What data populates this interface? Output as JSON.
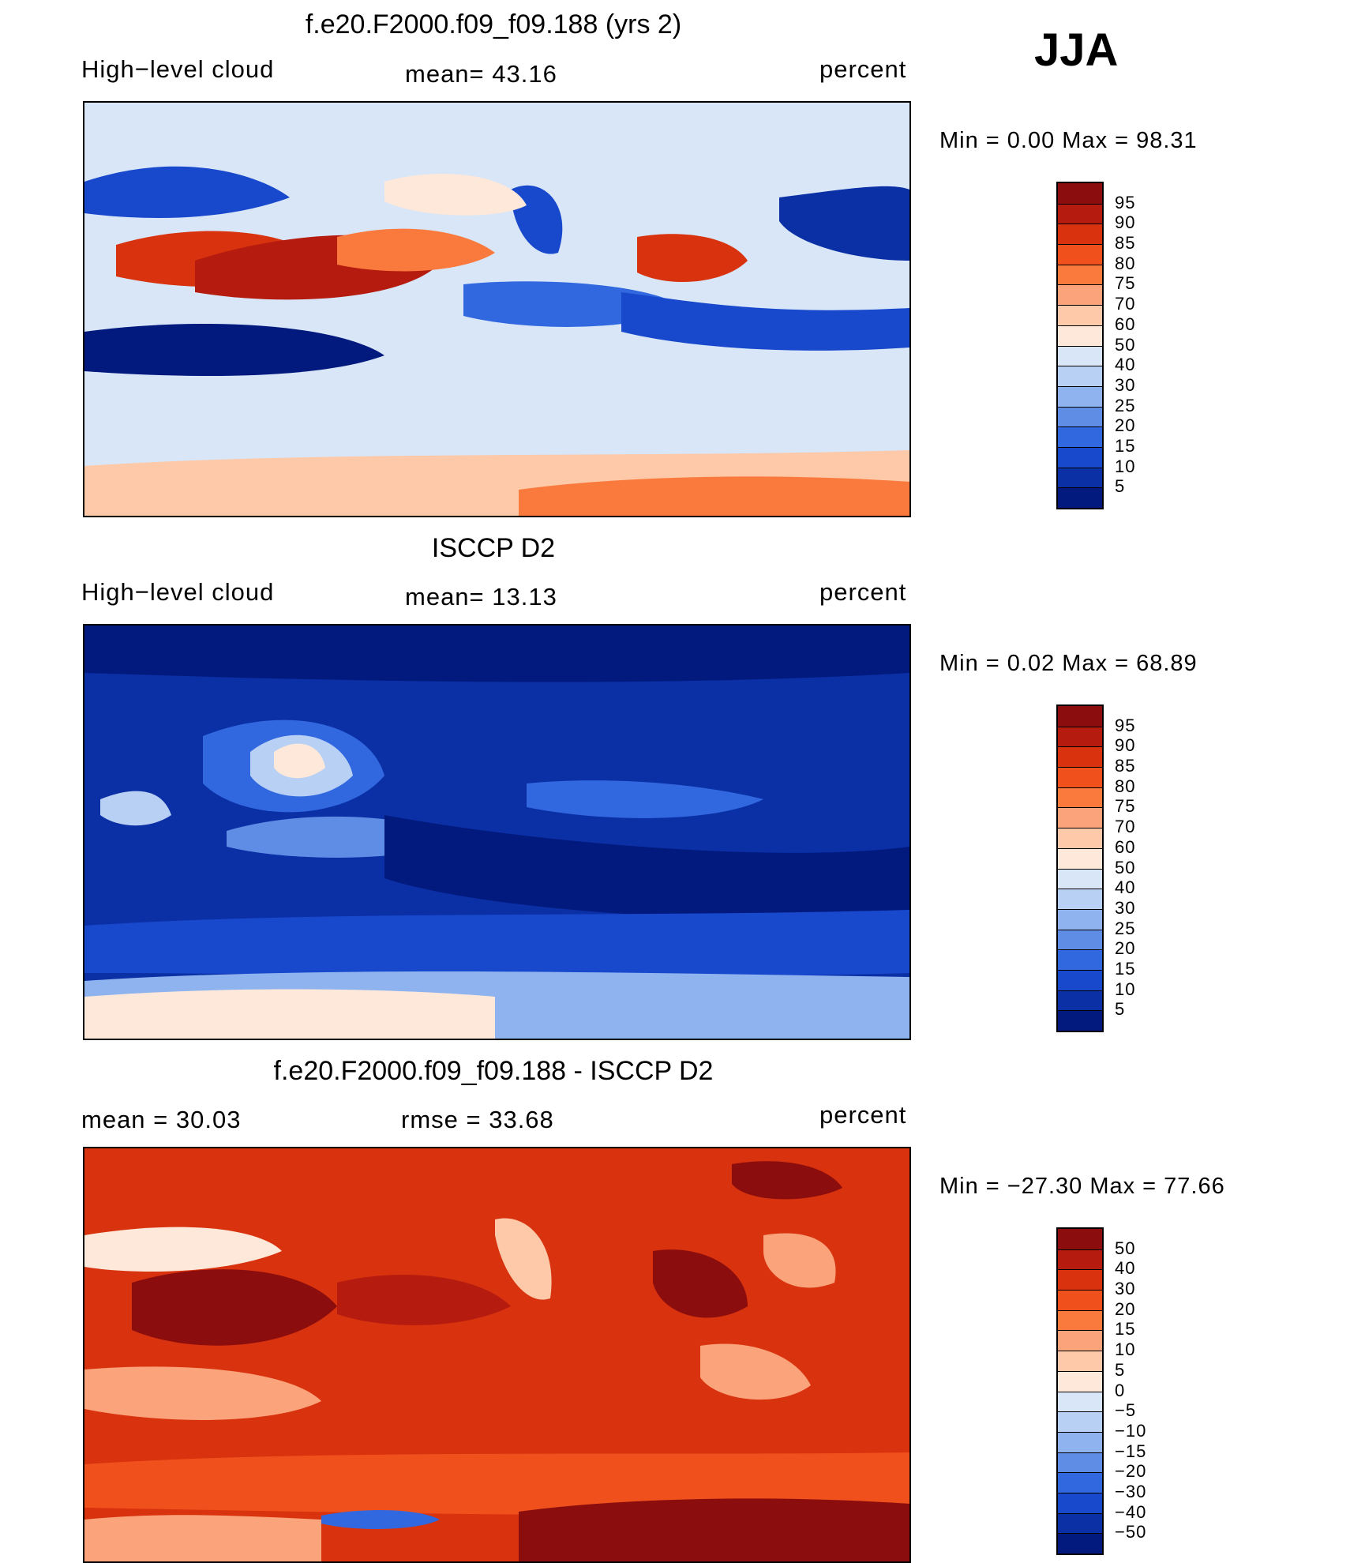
{
  "season": "JJA",
  "chart_data": [
    {
      "type": "heatmap",
      "title": "f.e20.F2000.f09_f09.188 (yrs 2)",
      "left_label": "High−level cloud",
      "center_label": "mean=   43.16",
      "right_label": "percent",
      "mean": 43.16,
      "min": 0.0,
      "max": 98.31,
      "stats_label": "Min =    0.00 Max =   98.31",
      "levels": [
        "95",
        "90",
        "85",
        "80",
        "75",
        "70",
        "60",
        "50",
        "40",
        "30",
        "25",
        "20",
        "15",
        "10",
        "5"
      ],
      "colors": [
        "#8b0d0d",
        "#b51b0f",
        "#d8320e",
        "#f0511c",
        "#fa7a3e",
        "#fba37a",
        "#fdc9a8",
        "#fde8da",
        "#d8e6f8",
        "#b8d0f4",
        "#8fb3ee",
        "#5f8de6",
        "#3168e0",
        "#1848cc",
        "#0b2fa5",
        "#021a7e"
      ]
    },
    {
      "type": "heatmap",
      "title": "ISCCP D2",
      "left_label": "High−level cloud",
      "center_label": "mean=   13.13",
      "right_label": "percent",
      "mean": 13.13,
      "min": 0.02,
      "max": 68.89,
      "stats_label": "Min =    0.02 Max =   68.89",
      "levels": [
        "95",
        "90",
        "85",
        "80",
        "75",
        "70",
        "60",
        "50",
        "40",
        "30",
        "25",
        "20",
        "15",
        "10",
        "5"
      ],
      "colors": [
        "#8b0d0d",
        "#b51b0f",
        "#d8320e",
        "#f0511c",
        "#fa7a3e",
        "#fba37a",
        "#fdc9a8",
        "#fde8da",
        "#d8e6f8",
        "#b8d0f4",
        "#8fb3ee",
        "#5f8de6",
        "#3168e0",
        "#1848cc",
        "#0b2fa5",
        "#021a7e"
      ]
    },
    {
      "type": "heatmap",
      "title": "f.e20.F2000.f09_f09.188 - ISCCP D2",
      "left_label": "mean =    30.03",
      "center_label": "rmse =    33.68",
      "right_label": "percent",
      "mean": 30.03,
      "rmse": 33.68,
      "min": -27.3,
      "max": 77.66,
      "stats_label": "Min = −27.30 Max =   77.66",
      "levels": [
        "50",
        "40",
        "30",
        "20",
        "15",
        "10",
        "5",
        "0",
        "−5",
        "−10",
        "−15",
        "−20",
        "−30",
        "−40",
        "−50"
      ],
      "colors": [
        "#8b0d0d",
        "#b51b0f",
        "#d8320e",
        "#f0511c",
        "#fa7a3e",
        "#fba37a",
        "#fdc9a8",
        "#fde8da",
        "#d8e6f8",
        "#b8d0f4",
        "#8fb3ee",
        "#5f8de6",
        "#3168e0",
        "#1848cc",
        "#0b2fa5",
        "#021a7e"
      ]
    }
  ]
}
